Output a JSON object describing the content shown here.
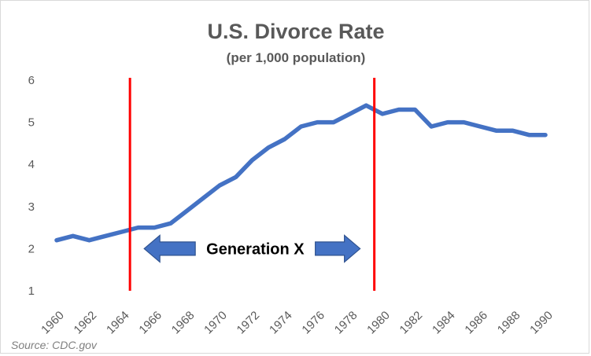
{
  "chart_data": {
    "type": "line",
    "title": "U.S. Divorce Rate",
    "subtitle": "(per 1,000 population)",
    "xlabel": "",
    "ylabel": "",
    "x": [
      1960,
      1961,
      1962,
      1963,
      1964,
      1965,
      1966,
      1967,
      1968,
      1969,
      1970,
      1971,
      1972,
      1973,
      1974,
      1975,
      1976,
      1977,
      1978,
      1979,
      1980,
      1981,
      1982,
      1983,
      1984,
      1985,
      1986,
      1987,
      1988,
      1989,
      1990
    ],
    "series": [
      {
        "values": [
          2.2,
          2.3,
          2.2,
          2.3,
          2.4,
          2.5,
          2.5,
          2.6,
          2.9,
          3.2,
          3.5,
          3.7,
          4.1,
          4.4,
          4.6,
          4.9,
          5.0,
          5.0,
          5.2,
          5.4,
          5.2,
          5.3,
          5.3,
          4.9,
          5.0,
          5.0,
          4.9,
          4.8,
          4.8,
          4.7,
          4.7
        ],
        "color": "#4472c4"
      }
    ],
    "xlim": [
      1960,
      1990
    ],
    "ylim": [
      1,
      6
    ],
    "x_ticks": [
      "1960",
      "1962",
      "1964",
      "1966",
      "1968",
      "1970",
      "1972",
      "1974",
      "1976",
      "1978",
      "1980",
      "1982",
      "1984",
      "1986",
      "1988",
      "1990"
    ],
    "y_ticks": [
      "1",
      "2",
      "3",
      "4",
      "5",
      "6"
    ],
    "grid": false,
    "legend": false,
    "vertical_lines": [
      {
        "x": 1964.5,
        "color": "#ff0000"
      },
      {
        "x": 1979.5,
        "color": "#ff0000"
      }
    ],
    "annotation": {
      "label": "Generation X",
      "arrow_color": "#4472c4",
      "text_color": "#000000"
    },
    "source": "Source: CDC.gov"
  }
}
